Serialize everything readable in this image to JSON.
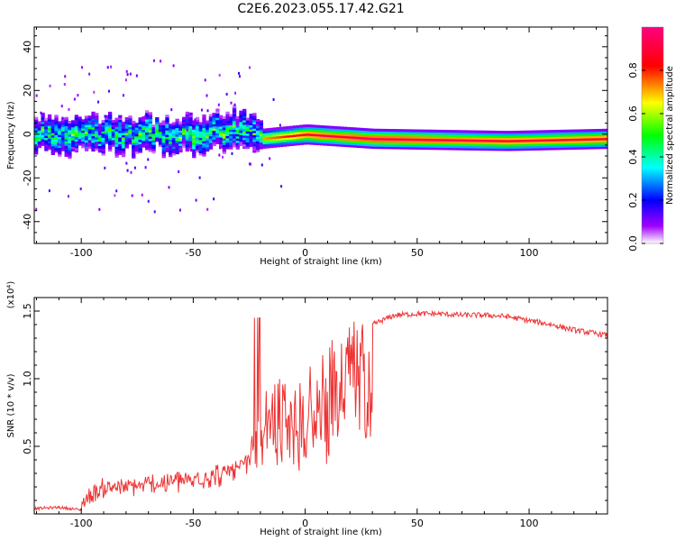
{
  "title": "C2E6.2023.055.17.42.G21",
  "chart_data": [
    {
      "type": "heatmap",
      "xlabel": "Height of straight line (km)",
      "ylabel": "Frequency (Hz)",
      "xlim": [
        -121,
        135
      ],
      "ylim": [
        -50,
        49
      ],
      "x_ticks": [
        -100,
        -50,
        0,
        50,
        100
      ],
      "y_ticks": [
        40,
        20,
        0,
        -20,
        -40
      ],
      "colorbar": {
        "label": "Normalized spectral amplitude",
        "range": [
          0,
          1
        ],
        "ticks": [
          "0.0",
          "0.2",
          "0.4",
          "0.6",
          "0.8"
        ],
        "colors": [
          "#ffffff",
          "#a000ff",
          "#0000ff",
          "#00ffff",
          "#00ff00",
          "#ffff00",
          "#ff0000",
          "#ff00a0"
        ]
      },
      "ridge": {
        "description_points": [
          {
            "x": -121,
            "freq": 0,
            "amp": 0.3
          },
          {
            "x": -60,
            "freq": 0,
            "amp": 0.4
          },
          {
            "x": -30,
            "freq": 2,
            "amp": 0.5
          },
          {
            "x": -20,
            "freq": -2,
            "amp": 0.7
          },
          {
            "x": 0,
            "freq": 0,
            "amp": 0.9
          },
          {
            "x": 30,
            "freq": -2,
            "amp": 0.95
          },
          {
            "x": 90,
            "freq": -3,
            "amp": 0.9
          },
          {
            "x": 135,
            "freq": -2,
            "amp": 0.9
          }
        ]
      }
    },
    {
      "type": "line",
      "xlabel": "Height of straight line (km)",
      "ylabel": "SNR (10 * v/v)",
      "scale_label": "(x10⁴)",
      "xlim": [
        -121,
        135
      ],
      "ylim": [
        0,
        1.6
      ],
      "x_ticks": [
        -100,
        -50,
        0,
        50,
        100
      ],
      "y_ticks": [
        0.5,
        1.0,
        1.5
      ],
      "color": "#ee3333",
      "series": [
        {
          "x": [
            -121,
            -110,
            -100,
            -95,
            -90,
            -80,
            -70,
            -60,
            -50,
            -40,
            -30,
            -25,
            -22,
            -20,
            -15,
            -10,
            -5,
            0,
            5,
            10,
            15,
            20,
            25,
            30,
            40,
            50,
            60,
            70,
            80,
            90,
            100,
            110,
            120,
            135
          ],
          "values": [
            0.03,
            0.04,
            0.02,
            0.1,
            0.15,
            0.16,
            0.18,
            0.2,
            0.22,
            0.26,
            0.3,
            0.4,
            0.55,
            0.7,
            0.75,
            0.8,
            0.82,
            0.85,
            0.95,
            1.05,
            1.15,
            1.25,
            1.35,
            1.4,
            1.47,
            1.48,
            1.48,
            1.47,
            1.47,
            1.46,
            1.43,
            1.4,
            1.36,
            1.32
          ]
        }
      ]
    }
  ]
}
